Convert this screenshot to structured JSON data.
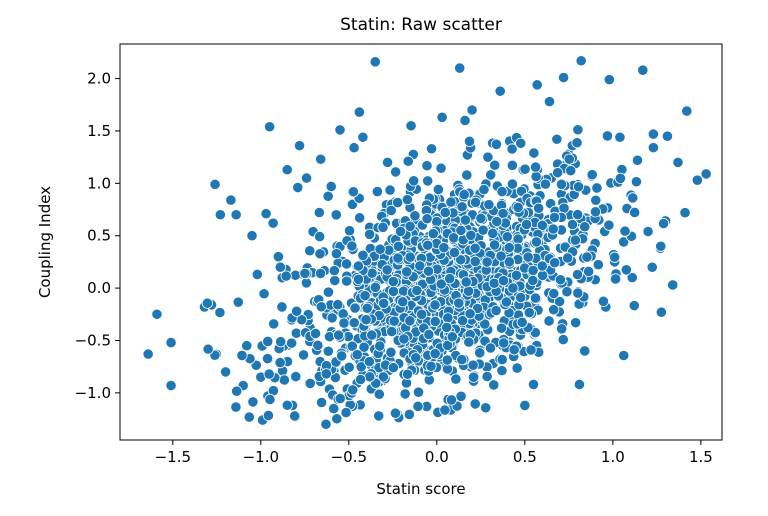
{
  "chart_data": {
    "type": "scatter",
    "title": "Statin: Raw scatter",
    "xlabel": "Statin score",
    "ylabel": "Coupling Index",
    "xlim": [
      -1.8,
      1.62
    ],
    "ylim": [
      -1.45,
      2.33
    ],
    "x_ticks": [
      -1.5,
      -1.0,
      -0.5,
      0.0,
      0.5,
      1.0,
      1.5
    ],
    "x_tick_labels": [
      "−1.5",
      "−1.0",
      "−0.5",
      "0.0",
      "0.5",
      "1.0",
      "1.5"
    ],
    "y_ticks": [
      -1.0,
      -0.5,
      0.0,
      0.5,
      1.0,
      1.5,
      2.0
    ],
    "y_tick_labels": [
      "−1.0",
      "−0.5",
      "0.0",
      "0.5",
      "1.0",
      "1.5",
      "2.0"
    ],
    "grid": false,
    "marker_color": "#1f77b4",
    "marker_edge_color": "#ffffff",
    "n_points_approx": 1500,
    "points": [
      {
        "x": -1.64,
        "y": -0.63
      },
      {
        "x": -1.59,
        "y": -0.25
      },
      {
        "x": -1.51,
        "y": -0.52
      },
      {
        "x": -1.51,
        "y": -0.93
      },
      {
        "x": -1.32,
        "y": -0.18
      },
      {
        "x": -1.28,
        "y": -0.16
      },
      {
        "x": -1.26,
        "y": 0.99
      },
      {
        "x": -1.23,
        "y": 0.7
      },
      {
        "x": -1.2,
        "y": -0.8
      },
      {
        "x": -1.17,
        "y": 0.84
      },
      {
        "x": -1.14,
        "y": 0.7
      },
      {
        "x": -1.1,
        "y": -0.93
      },
      {
        "x": -1.08,
        "y": -0.55
      },
      {
        "x": -1.05,
        "y": 0.5
      },
      {
        "x": -1.02,
        "y": 0.13
      },
      {
        "x": -1.0,
        "y": -0.85
      },
      {
        "x": -0.99,
        "y": -1.26
      },
      {
        "x": -0.97,
        "y": 0.71
      },
      {
        "x": -0.96,
        "y": -1.03
      },
      {
        "x": -0.95,
        "y": 1.54
      },
      {
        "x": -0.93,
        "y": 0.62
      },
      {
        "x": -0.9,
        "y": 0.3
      },
      {
        "x": -0.88,
        "y": -0.18
      },
      {
        "x": -0.85,
        "y": 1.13
      },
      {
        "x": -0.82,
        "y": -1.12
      },
      {
        "x": -0.79,
        "y": 0.96
      },
      {
        "x": -0.78,
        "y": 1.36
      },
      {
        "x": -0.74,
        "y": 1.05
      },
      {
        "x": -0.72,
        "y": -0.38
      },
      {
        "x": -0.66,
        "y": 1.23
      },
      {
        "x": -0.63,
        "y": -1.3
      },
      {
        "x": -0.6,
        "y": 0.97
      },
      {
        "x": -0.55,
        "y": 1.51
      },
      {
        "x": -0.5,
        "y": 0.11
      },
      {
        "x": -0.47,
        "y": 1.34
      },
      {
        "x": -0.44,
        "y": 1.68
      },
      {
        "x": -0.42,
        "y": 1.44
      },
      {
        "x": -0.35,
        "y": 2.16
      },
      {
        "x": -0.34,
        "y": -0.78
      },
      {
        "x": -0.33,
        "y": -1.22
      },
      {
        "x": -0.28,
        "y": 1.2
      },
      {
        "x": -0.25,
        "y": 0.45
      },
      {
        "x": -0.21,
        "y": -0.42
      },
      {
        "x": -0.18,
        "y": -1.01
      },
      {
        "x": -0.15,
        "y": 0.92
      },
      {
        "x": -0.1,
        "y": 0.22
      },
      {
        "x": -0.05,
        "y": -0.36
      },
      {
        "x": -0.03,
        "y": 1.33
      },
      {
        "x": 0.0,
        "y": 0.6
      },
      {
        "x": 0.01,
        "y": -1.18
      },
      {
        "x": 0.03,
        "y": 1.63
      },
      {
        "x": 0.06,
        "y": 0.05
      },
      {
        "x": 0.09,
        "y": -0.55
      },
      {
        "x": 0.12,
        "y": 0.98
      },
      {
        "x": 0.13,
        "y": 2.1
      },
      {
        "x": 0.16,
        "y": 1.6
      },
      {
        "x": 0.2,
        "y": 1.7
      },
      {
        "x": 0.22,
        "y": -0.15
      },
      {
        "x": 0.25,
        "y": 0.55
      },
      {
        "x": 0.29,
        "y": 1.25
      },
      {
        "x": 0.32,
        "y": -0.72
      },
      {
        "x": 0.36,
        "y": 1.88
      },
      {
        "x": 0.4,
        "y": 0.3
      },
      {
        "x": 0.44,
        "y": -0.3
      },
      {
        "x": 0.47,
        "y": 1.4
      },
      {
        "x": 0.5,
        "y": -1.12
      },
      {
        "x": 0.53,
        "y": 0.88
      },
      {
        "x": 0.57,
        "y": 1.94
      },
      {
        "x": 0.6,
        "y": 0.12
      },
      {
        "x": 0.64,
        "y": 1.78
      },
      {
        "x": 0.67,
        "y": -0.2
      },
      {
        "x": 0.72,
        "y": 2.01
      },
      {
        "x": 0.75,
        "y": 1.28
      },
      {
        "x": 0.79,
        "y": 0.42
      },
      {
        "x": 0.81,
        "y": -0.92
      },
      {
        "x": 0.82,
        "y": 2.17
      },
      {
        "x": 0.84,
        "y": -0.6
      },
      {
        "x": 0.88,
        "y": 1.07
      },
      {
        "x": 0.92,
        "y": 0.65
      },
      {
        "x": 0.96,
        "y": -0.18
      },
      {
        "x": 0.98,
        "y": 1.99
      },
      {
        "x": 1.01,
        "y": 0.25
      },
      {
        "x": 1.04,
        "y": 1.44
      },
      {
        "x": 1.08,
        "y": 0.76
      },
      {
        "x": 1.11,
        "y": 0.1
      },
      {
        "x": 1.14,
        "y": 1.22
      },
      {
        "x": 1.17,
        "y": 2.08
      },
      {
        "x": 1.2,
        "y": 0.54
      },
      {
        "x": 1.23,
        "y": 1.47
      },
      {
        "x": 1.27,
        "y": 0.38
      },
      {
        "x": 1.31,
        "y": 1.45
      },
      {
        "x": 1.34,
        "y": 0.03
      },
      {
        "x": 1.37,
        "y": 1.2
      },
      {
        "x": 1.42,
        "y": 1.69
      },
      {
        "x": 1.41,
        "y": 0.72
      },
      {
        "x": 1.48,
        "y": 1.03
      },
      {
        "x": 1.53,
        "y": 1.09
      }
    ]
  }
}
